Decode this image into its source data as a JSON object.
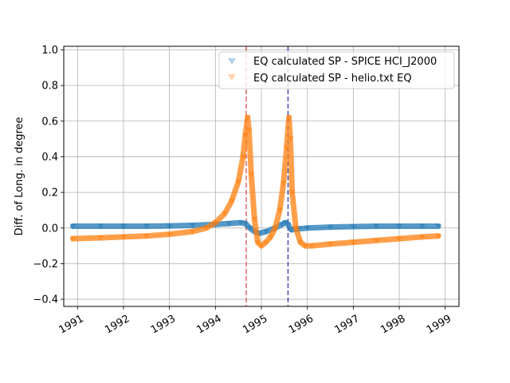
{
  "chart_data": {
    "type": "scatter",
    "title": "",
    "xlabel": "",
    "ylabel": "Diff. of Long. in degree",
    "xlim": [
      1990.7,
      1999.3
    ],
    "ylim": [
      -0.44,
      1.02
    ],
    "x_ticks": [
      1991,
      1992,
      1993,
      1994,
      1995,
      1996,
      1997,
      1998,
      1999
    ],
    "x_tick_labels": [
      "1991",
      "1992",
      "1993",
      "1994",
      "1995",
      "1996",
      "1997",
      "1998",
      "1999"
    ],
    "y_ticks": [
      -0.4,
      -0.2,
      0.0,
      0.2,
      0.4,
      0.6,
      0.8,
      1.0
    ],
    "y_tick_labels": [
      "−0.4",
      "−0.2",
      "0.0",
      "0.2",
      "0.4",
      "0.6",
      "0.8",
      "1.0"
    ],
    "grid": true,
    "legend_position": "top-right",
    "marker": "triangle-down",
    "series": [
      {
        "name": "EQ calculated SP - SPICE HCI_J2000",
        "color": "#1f77b4",
        "x": [
          1990.9,
          1991.5,
          1992.0,
          1992.5,
          1993.0,
          1993.5,
          1994.0,
          1994.3,
          1994.55,
          1994.65,
          1994.75,
          1994.85,
          1994.95,
          1995.1,
          1995.3,
          1995.45,
          1995.52,
          1995.58,
          1995.65,
          1995.8,
          1996.0,
          1996.5,
          1997.0,
          1997.5,
          1998.0,
          1998.5,
          1998.85
        ],
        "y": [
          0.01,
          0.01,
          0.01,
          0.01,
          0.012,
          0.015,
          0.02,
          0.025,
          0.03,
          0.025,
          0.0,
          -0.02,
          -0.03,
          -0.02,
          0.0,
          0.02,
          0.03,
          0.02,
          -0.01,
          -0.005,
          0.0,
          0.005,
          0.008,
          0.01,
          0.01,
          0.01,
          0.01
        ]
      },
      {
        "name": "EQ calculated SP - helio.txt EQ",
        "color": "#ff7f0e",
        "x": [
          1990.9,
          1991.5,
          1992.0,
          1992.5,
          1993.0,
          1993.5,
          1993.8,
          1994.0,
          1994.2,
          1994.35,
          1994.5,
          1994.6,
          1994.65,
          1994.7,
          1994.73,
          1994.78,
          1994.85,
          1994.92,
          1995.0,
          1995.1,
          1995.2,
          1995.3,
          1995.4,
          1995.48,
          1995.55,
          1995.6,
          1995.63,
          1995.67,
          1995.75,
          1995.85,
          1995.95,
          1996.1,
          1996.5,
          1997.0,
          1997.5,
          1998.0,
          1998.5,
          1998.85
        ],
        "y": [
          -0.06,
          -0.055,
          -0.05,
          -0.045,
          -0.035,
          -0.02,
          0.0,
          0.03,
          0.08,
          0.15,
          0.26,
          0.4,
          0.52,
          0.62,
          0.55,
          0.3,
          0.05,
          -0.08,
          -0.1,
          -0.08,
          -0.05,
          0.0,
          0.1,
          0.25,
          0.45,
          0.62,
          0.5,
          0.2,
          0.0,
          -0.08,
          -0.1,
          -0.1,
          -0.09,
          -0.08,
          -0.07,
          -0.06,
          -0.05,
          -0.045
        ]
      }
    ],
    "vertical_lines": [
      {
        "x": 1994.67,
        "color": "#e06666",
        "style": "dashed"
      },
      {
        "x": 1995.58,
        "color": "#4a4aad",
        "style": "dashed"
      }
    ]
  }
}
